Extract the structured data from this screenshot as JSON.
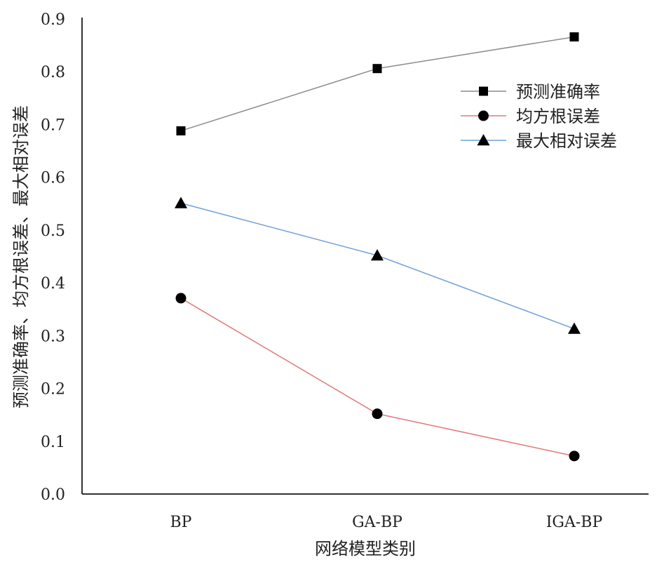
{
  "chart_data": {
    "type": "line",
    "categories": [
      "BP",
      "GA-BP",
      "IGA-BP"
    ],
    "xlabel": "网络模型类别",
    "ylabel": "预测准确率、均方根误差、最大相对误差",
    "ylim": [
      0,
      0.9
    ],
    "yticks": [
      "0.0",
      "0.1",
      "0.2",
      "0.3",
      "0.4",
      "0.5",
      "0.6",
      "0.7",
      "0.8",
      "0.9"
    ],
    "grid": false,
    "legend_position": "top-right",
    "series": [
      {
        "name": "预测准确率",
        "values": [
          0.688,
          0.806,
          0.866
        ],
        "color": "#8c8c8c",
        "marker": "square"
      },
      {
        "name": "均方根误差",
        "values": [
          0.371,
          0.152,
          0.072
        ],
        "color": "#e07a7a",
        "marker": "circle"
      },
      {
        "name": "最大相对误差",
        "values": [
          0.551,
          0.452,
          0.313
        ],
        "color": "#6fa0d8",
        "marker": "triangle"
      }
    ]
  }
}
